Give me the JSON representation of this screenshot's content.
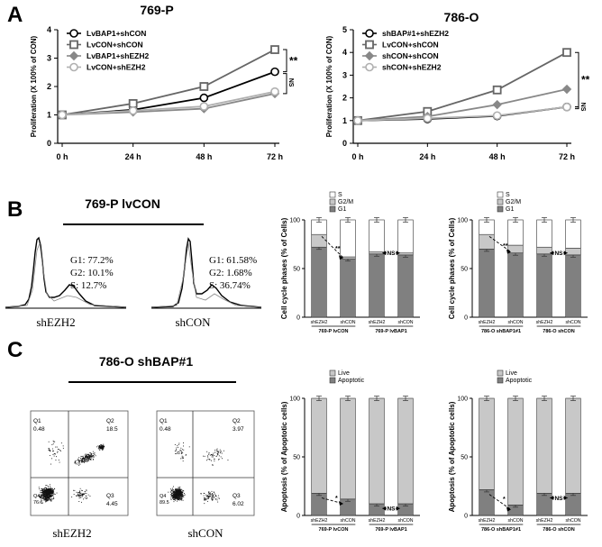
{
  "panel_letters": {
    "a": "A",
    "b": "B",
    "c": "C"
  },
  "chart_data": [
    {
      "type": "line",
      "title": "769-P",
      "xlabel": "",
      "ylabel": "Proliferation (X 100% of CON)",
      "categories": [
        "0 h",
        "24 h",
        "48 h",
        "72 h"
      ],
      "ylim": [
        0,
        4
      ],
      "yticks": [
        "0",
        "1",
        "2",
        "3",
        "4"
      ],
      "legend_position": "top-left",
      "series": [
        {
          "name": "LvBAP1+shCON",
          "values": [
            1.0,
            1.18,
            1.6,
            2.52
          ],
          "color": "#000000",
          "marker": "circle-open"
        },
        {
          "name": "LvCON+shCON",
          "values": [
            1.0,
            1.4,
            2.0,
            3.3
          ],
          "color": "#666666",
          "marker": "square-open"
        },
        {
          "name": "LvBAP1+shEZH2",
          "values": [
            1.0,
            1.1,
            1.22,
            1.75
          ],
          "color": "#888888",
          "marker": "diamond"
        },
        {
          "name": "LvCON+shEZH2",
          "values": [
            1.0,
            1.15,
            1.3,
            1.82
          ],
          "color": "#b0b0b0",
          "marker": "circle-open"
        }
      ],
      "annotations": [
        "**",
        "NS"
      ]
    },
    {
      "type": "line",
      "title": "786-O",
      "xlabel": "",
      "ylabel": "Proliferation (X 100% of CON)",
      "categories": [
        "0 h",
        "24 h",
        "48 h",
        "72 h"
      ],
      "ylim": [
        0,
        5
      ],
      "yticks": [
        "0",
        "1",
        "2",
        "3",
        "4",
        "5"
      ],
      "legend_position": "top-left",
      "series": [
        {
          "name": "shBAP#1+shEZH2",
          "values": [
            1.0,
            1.07,
            1.2,
            1.6
          ],
          "color": "#000000",
          "marker": "circle-open"
        },
        {
          "name": "LvCON+shCON",
          "values": [
            1.0,
            1.4,
            2.35,
            4.0
          ],
          "color": "#666666",
          "marker": "square-open"
        },
        {
          "name": "shCON+shCON",
          "values": [
            1.0,
            1.18,
            1.7,
            2.38
          ],
          "color": "#888888",
          "marker": "diamond"
        },
        {
          "name": "shCON+shEZH2",
          "values": [
            1.0,
            1.1,
            1.22,
            1.6
          ],
          "color": "#b0b0b0",
          "marker": "circle-open"
        }
      ],
      "annotations": [
        "**",
        "NS"
      ]
    },
    {
      "type": "bar",
      "stacked": true,
      "ylabel": "Cell cycle phases (% of Cells)",
      "ylim": [
        0,
        100
      ],
      "yticks": [
        "0",
        "50",
        "100"
      ],
      "legend": [
        "S",
        "G2/M",
        "G1"
      ],
      "colors": {
        "S": "#ffffff",
        "G2/M": "#c8c8c8",
        "G1": "#808080"
      },
      "categories": [
        "shEZH2",
        "shCON",
        "shEZH2",
        "shCON"
      ],
      "groups": [
        "769-P lvCON",
        "769-P lvBAP1"
      ],
      "series": [
        {
          "name": "G1",
          "values": [
            72,
            60,
            65,
            64
          ]
        },
        {
          "name": "G2/M",
          "values": [
            13,
            2,
            2,
            2
          ]
        },
        {
          "name": "S",
          "values": [
            15,
            38,
            33,
            34
          ]
        }
      ],
      "annotations": [
        "**",
        "NS"
      ]
    },
    {
      "type": "bar",
      "stacked": true,
      "ylabel": "Cell cycle phases (% of Cells)",
      "ylim": [
        0,
        100
      ],
      "yticks": [
        "0",
        "50",
        "100"
      ],
      "legend": [
        "S",
        "G2/M",
        "G1"
      ],
      "colors": {
        "S": "#ffffff",
        "G2/M": "#c8c8c8",
        "G1": "#808080"
      },
      "categories": [
        "shEZH2",
        "shCON",
        "shEZH2",
        "shCON"
      ],
      "groups": [
        "786-O shBAP1#1",
        "786-O shCON"
      ],
      "series": [
        {
          "name": "G1",
          "values": [
            70,
            66,
            65,
            64
          ]
        },
        {
          "name": "G2/M",
          "values": [
            15,
            8,
            7,
            7
          ]
        },
        {
          "name": "S",
          "values": [
            15,
            26,
            28,
            29
          ]
        }
      ],
      "annotations": [
        "**",
        "NS"
      ]
    },
    {
      "type": "bar",
      "stacked": true,
      "ylabel": "Apoptosis (% of Apoptotic cells)",
      "ylim": [
        0,
        100
      ],
      "yticks": [
        "0",
        "50",
        "100"
      ],
      "legend": [
        "Live",
        "Apoptotic"
      ],
      "colors": {
        "Live": "#c8c8c8",
        "Apoptotic": "#808080"
      },
      "categories": [
        "shEZH2",
        "shCON",
        "shEZH2",
        "shCON"
      ],
      "groups": [
        "769-P lvCON",
        "769-P lvBAP1"
      ],
      "series": [
        {
          "name": "Apoptotic",
          "values": [
            19,
            14,
            10,
            10
          ]
        },
        {
          "name": "Live",
          "values": [
            81,
            86,
            90,
            90
          ]
        }
      ],
      "annotations": [
        "*",
        "NS"
      ]
    },
    {
      "type": "bar",
      "stacked": true,
      "ylabel": "Apoptosis (% of Apoptotic cells)",
      "ylim": [
        0,
        100
      ],
      "yticks": [
        "0",
        "50",
        "100"
      ],
      "legend": [
        "Live",
        "Apoptotic"
      ],
      "colors": {
        "Live": "#c8c8c8",
        "Apoptotic": "#808080"
      },
      "categories": [
        "shEZH2",
        "shCON",
        "shEZH2",
        "shCON"
      ],
      "groups": [
        "786-O shBAP1#1",
        "786-O shCON"
      ],
      "series": [
        {
          "name": "Apoptotic",
          "values": [
            22,
            9,
            19,
            19
          ]
        },
        {
          "name": "Live",
          "values": [
            78,
            91,
            81,
            81
          ]
        }
      ],
      "annotations": [
        "*",
        "NS"
      ]
    }
  ],
  "histograms": {
    "title": "769-P lvCON",
    "left": {
      "label": "shEZH2",
      "g1": "G1: 77.2%",
      "g2": "G2: 10.1%",
      "s": "S:   12.7%"
    },
    "right": {
      "label": "shCON",
      "g1": "G1: 61.58%",
      "g2": "G2: 1.68%",
      "s": "S:   36.74%"
    }
  },
  "flow": {
    "title": "786-O shBAP#1",
    "left": {
      "label": "shEZH2",
      "q1": "Q1",
      "q1v": "0.48",
      "q2": "Q2",
      "q2v": "18.5",
      "q3": "Q3",
      "q3v": "4.45",
      "q4": "Q4",
      "q4v": "76.6"
    },
    "right": {
      "label": "shCON",
      "q1": "Q1",
      "q1v": "0.48",
      "q2": "Q2",
      "q2v": "3.97",
      "q3": "Q3",
      "q3v": "6.02",
      "q4": "Q4",
      "q4v": "89.5"
    }
  }
}
